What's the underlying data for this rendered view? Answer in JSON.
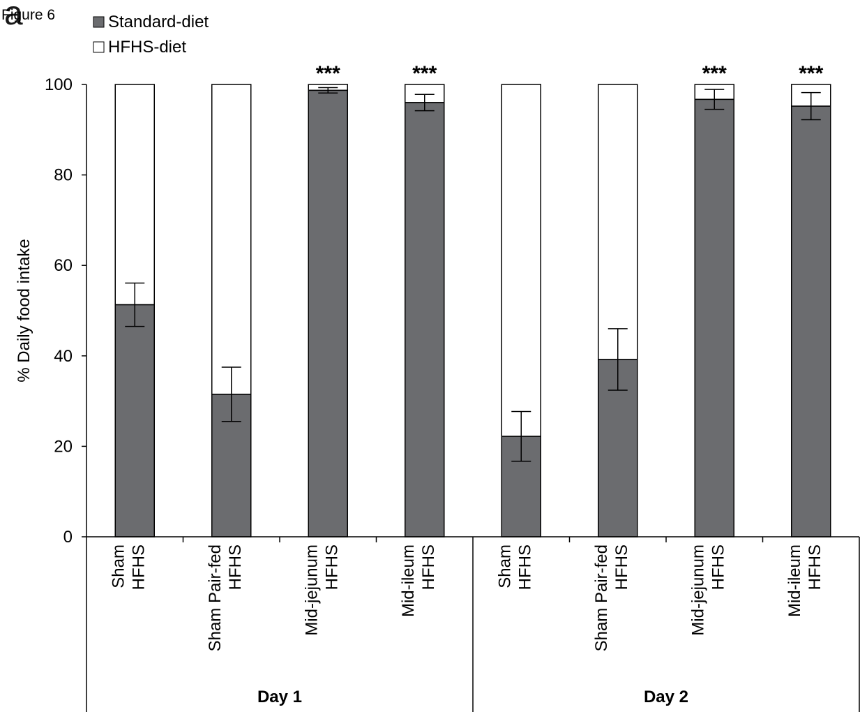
{
  "figure_label": "Figure 6",
  "panel_letter": "a",
  "colors": {
    "standard": "#6b6c6f",
    "hfhs": "#ffffff",
    "stroke": "#000000"
  },
  "chart_data": {
    "type": "bar",
    "stacked": true,
    "ylabel": "% Daily food intake",
    "xlabel": "",
    "ylim": [
      0,
      100
    ],
    "yticks": [
      0,
      20,
      40,
      60,
      80,
      100
    ],
    "legend": {
      "placement": "top-left",
      "entries": [
        "Standard-diet",
        "HFHS-diet"
      ]
    },
    "groups": [
      "Day 1",
      "Day 2"
    ],
    "categories": [
      [
        "Sham",
        "HFHS"
      ],
      [
        "Sham Pair-fed",
        "HFHS"
      ],
      [
        "Mid-jejunum",
        "HFHS"
      ],
      [
        "Mid-ileum",
        "HFHS"
      ],
      [
        "Sham",
        "HFHS"
      ],
      [
        "Sham Pair-fed",
        "HFHS"
      ],
      [
        "Mid-jejunum",
        "HFHS"
      ],
      [
        "Mid-ileum",
        "HFHS"
      ]
    ],
    "category_group": [
      0,
      0,
      0,
      0,
      1,
      1,
      1,
      1
    ],
    "series": [
      {
        "name": "Standard-diet",
        "values": [
          51.3,
          31.5,
          98.7,
          96.0,
          22.2,
          39.2,
          96.7,
          95.2
        ]
      },
      {
        "name": "HFHS-diet",
        "values": [
          48.7,
          68.5,
          1.3,
          4.0,
          77.8,
          60.8,
          3.3,
          4.8
        ]
      }
    ],
    "error": [
      4.8,
      6.0,
      0.6,
      1.8,
      5.5,
      6.8,
      2.2,
      3.0
    ],
    "significance": [
      "",
      "",
      "***",
      "***",
      "",
      "",
      "***",
      "***"
    ]
  }
}
